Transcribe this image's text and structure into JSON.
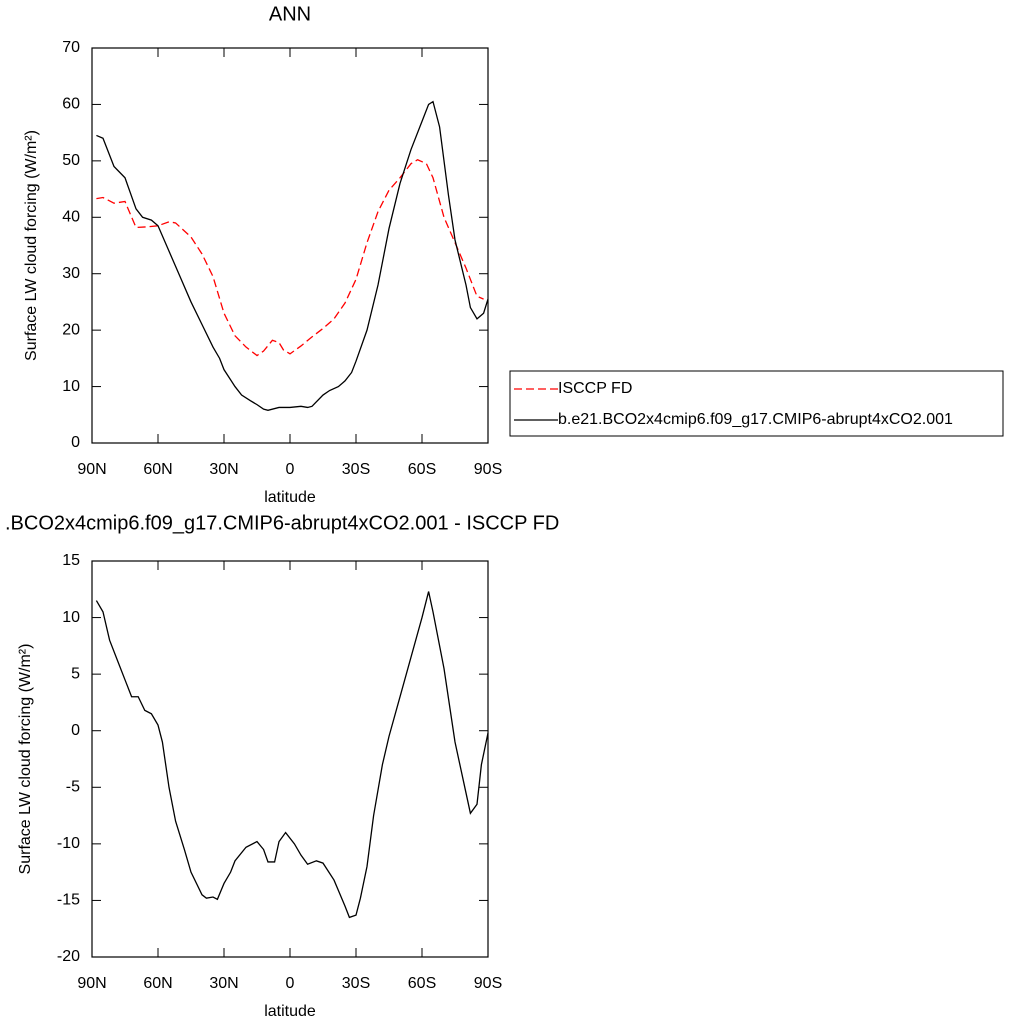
{
  "chart_data": [
    {
      "type": "line",
      "title": "ANN",
      "xlabel": "latitude",
      "ylabel": "Surface LW cloud forcing (W/m²)",
      "xlim": [
        90,
        -90
      ],
      "xticks": [
        {
          "value": 90,
          "label": "90N"
        },
        {
          "value": 60,
          "label": "60N"
        },
        {
          "value": 30,
          "label": "30N"
        },
        0,
        {
          "value": -30,
          "label": "30S"
        },
        {
          "value": -60,
          "label": "60S"
        },
        {
          "value": -90,
          "label": "90S"
        }
      ],
      "ylim": [
        0,
        70
      ],
      "yticks": [
        0,
        10,
        20,
        30,
        40,
        50,
        60,
        70
      ],
      "legend": "right",
      "series": [
        {
          "name": "ISCCP FD",
          "color": "#ff0000",
          "linestyle": "dashed",
          "x": [
            88,
            85,
            80,
            75,
            70,
            65,
            60,
            55,
            52,
            45,
            40,
            35,
            30,
            25,
            20,
            15,
            12,
            8,
            5,
            3,
            0,
            -5,
            -10,
            -15,
            -20,
            -25,
            -30,
            -35,
            -40,
            -45,
            -50,
            -55,
            -58,
            -62,
            -65,
            -70,
            -75,
            -80,
            -85,
            -88
          ],
          "values": [
            43.3,
            43.5,
            42.5,
            42.8,
            38.2,
            38.3,
            38.5,
            39.2,
            39,
            36.5,
            33.5,
            29.5,
            23,
            19,
            17,
            15.5,
            16.3,
            18.2,
            17.8,
            16.5,
            15.8,
            17.2,
            18.8,
            20.3,
            22,
            24.8,
            29,
            35.5,
            41,
            44.8,
            47,
            49.5,
            50.2,
            49.5,
            47,
            40,
            35.5,
            31,
            26,
            25.5
          ]
        },
        {
          "name": "b.e21.BCO2x4cmip6.f09_g17.CMIP6-abrupt4xCO2.001",
          "color": "#000000",
          "linestyle": "solid",
          "x": [
            88,
            85,
            80,
            75,
            70,
            67,
            63,
            60,
            55,
            50,
            45,
            40,
            35,
            32,
            30,
            25,
            22,
            18,
            15,
            12,
            10,
            5,
            0,
            -5,
            -8,
            -10,
            -15,
            -18,
            -22,
            -25,
            -28,
            -30,
            -35,
            -40,
            -45,
            -50,
            -55,
            -60,
            -63,
            -65,
            -68,
            -72,
            -75,
            -80,
            -82,
            -85,
            -88,
            -90
          ],
          "values": [
            54.5,
            54,
            49,
            47,
            41.5,
            40,
            39.5,
            38.5,
            34,
            29.5,
            25,
            21,
            17,
            15,
            13,
            10,
            8.5,
            7.5,
            6.8,
            6,
            5.8,
            6.3,
            6.3,
            6.5,
            6.3,
            6.5,
            8.5,
            9.3,
            10,
            11,
            12.5,
            14.5,
            20,
            28,
            38,
            46,
            52,
            57,
            60,
            60.5,
            56,
            44,
            36,
            28,
            24,
            22,
            23,
            25.5
          ]
        }
      ]
    },
    {
      "type": "line",
      "title": ".BCO2x4cmip6.f09_g17.CMIP6-abrupt4xCO2.001 - ISCCP FD",
      "xlabel": "latitude",
      "ylabel": "Surface LW cloud forcing (W/m²)",
      "xlim": [
        90,
        -90
      ],
      "xticks": [
        {
          "value": 90,
          "label": "90N"
        },
        {
          "value": 60,
          "label": "60N"
        },
        {
          "value": 30,
          "label": "30N"
        },
        0,
        {
          "value": -30,
          "label": "30S"
        },
        {
          "value": -60,
          "label": "60S"
        },
        {
          "value": -90,
          "label": "90S"
        }
      ],
      "ylim": [
        -20,
        15
      ],
      "yticks": [
        -20,
        -15,
        -10,
        -5,
        0,
        5,
        10,
        15
      ],
      "color": "#000000",
      "x": [
        88,
        85,
        82,
        78,
        75,
        72,
        69,
        66,
        63,
        60,
        58,
        55,
        52,
        48,
        45,
        40,
        38,
        35,
        33,
        30,
        27,
        25,
        20,
        15,
        12,
        10,
        7,
        5,
        2,
        -2,
        -5,
        -8,
        -12,
        -15,
        -20,
        -25,
        -27,
        -30,
        -32,
        -35,
        -38,
        -42,
        -45,
        -50,
        -55,
        -60,
        -63,
        -65,
        -70,
        -75,
        -80,
        -82,
        -85,
        -87,
        -90
      ],
      "values": [
        11.5,
        10.5,
        8,
        6,
        4.5,
        3,
        3,
        1.8,
        1.5,
        0.5,
        -1,
        -5,
        -8,
        -10.5,
        -12.5,
        -14.5,
        -14.8,
        -14.7,
        -14.9,
        -13.5,
        -12.5,
        -11.5,
        -10.3,
        -9.8,
        -10.5,
        -11.6,
        -11.6,
        -9.8,
        -9,
        -10,
        -11,
        -11.8,
        -11.5,
        -11.7,
        -13.2,
        -15.5,
        -16.5,
        -16.3,
        -14.8,
        -12,
        -7.5,
        -3,
        -0.5,
        3,
        6.5,
        10,
        12.3,
        10.5,
        5.5,
        -1,
        -5.5,
        -7.3,
        -6.5,
        -3,
        -0.2
      ]
    }
  ]
}
